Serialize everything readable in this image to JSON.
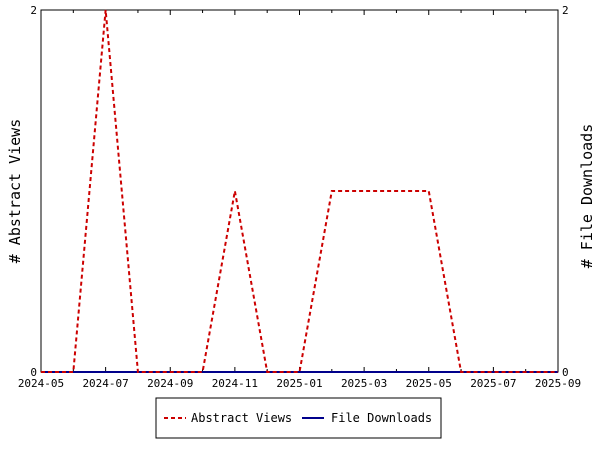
{
  "chart_data": {
    "type": "line",
    "x_tick_labels": [
      "2024-05",
      "2024-07",
      "2024-09",
      "2024-11",
      "2025-01",
      "2025-03",
      "2025-05",
      "2025-07",
      "2025-09"
    ],
    "x": [
      "2024-05",
      "2024-06",
      "2024-07",
      "2024-08",
      "2024-09",
      "2024-10",
      "2024-11",
      "2024-12",
      "2025-01",
      "2025-02",
      "2025-03",
      "2025-04",
      "2025-05",
      "2025-06",
      "2025-07",
      "2025-08",
      "2025-09"
    ],
    "xlim": [
      "2024-05",
      "2025-09"
    ],
    "series": [
      {
        "name": "Abstract Views",
        "axis": "left",
        "color": "#cc0000",
        "style": "dashed",
        "values": [
          0,
          0,
          2,
          0,
          0,
          0,
          1,
          0,
          0,
          1,
          1,
          1,
          1,
          0,
          0,
          0,
          0
        ]
      },
      {
        "name": "File Downloads",
        "axis": "right",
        "color": "#00008b",
        "style": "solid",
        "values": [
          0,
          0,
          0,
          0,
          0,
          0,
          0,
          0,
          0,
          0,
          0,
          0,
          0,
          0,
          0,
          0,
          0
        ]
      }
    ],
    "ylabel_left": "# Abstract Views",
    "ylabel_right": "# File Downloads",
    "ylim_left": [
      0,
      2
    ],
    "ylim_right": [
      0,
      2
    ],
    "y_tick_labels_left": [
      "0",
      "2"
    ],
    "y_tick_labels_right": [
      "0",
      "2"
    ],
    "grid": false,
    "legend_position": "bottom"
  }
}
